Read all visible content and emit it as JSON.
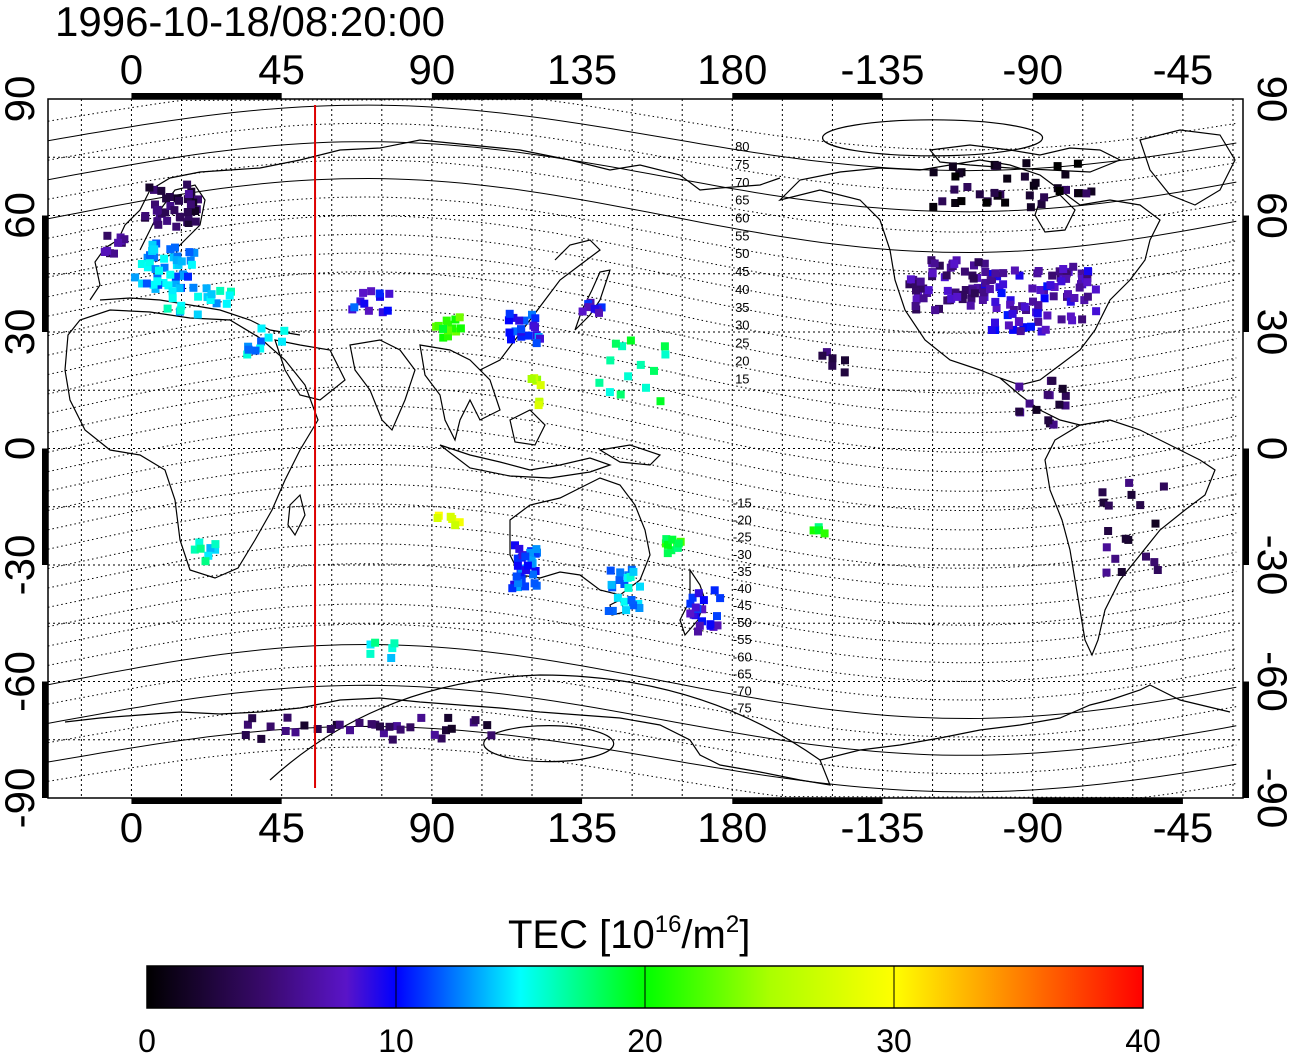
{
  "title": "1996-10-18/08:20:00",
  "colorbar": {
    "label_main": "TEC  [10",
    "label_exp1": "16",
    "label_mid": "/m",
    "label_exp2": "2",
    "label_end": "]",
    "ticks": [
      "0",
      "10",
      "20",
      "30",
      "40"
    ],
    "range": [
      0,
      40
    ],
    "colors": [
      "#000000",
      "#3a0a6e",
      "#5a14c8",
      "#0000ff",
      "#00ffff",
      "#00ff00",
      "#ffff00",
      "#ff8000",
      "#ff0000"
    ]
  },
  "chart_data": {
    "type": "heatmap",
    "title": "1996-10-18/08:20:00",
    "x_ticks_top": [
      "0",
      "45",
      "90",
      "135",
      "180",
      "-135",
      "-90",
      "-45"
    ],
    "x_ticks_bottom": [
      "0",
      "45",
      "90",
      "135",
      "180",
      "-135",
      "-90",
      "-45"
    ],
    "y_ticks_left": [
      "90",
      "60",
      "30",
      "0",
      "-30",
      "-60",
      "-90"
    ],
    "y_ticks_right": [
      "90",
      "60",
      "30",
      "0",
      "-30",
      "-60",
      "-90"
    ],
    "x_tick_lons": [
      0,
      45,
      90,
      135,
      180,
      225,
      270,
      315
    ],
    "y_tick_lats": [
      90,
      60,
      30,
      0,
      -30,
      -60,
      -90
    ],
    "lon_range": [
      -25,
      333
    ],
    "lat_range": [
      -90,
      90
    ],
    "terminator_lon": 55,
    "contour_labels_north": [
      "80",
      "75",
      "70",
      "65",
      "60",
      "55",
      "50",
      "45",
      "40",
      "35",
      "30",
      "25",
      "20",
      "15"
    ],
    "contour_labels_north_lat": [
      80,
      75,
      70,
      65,
      60,
      55,
      50,
      45,
      40,
      35,
      30,
      25,
      20,
      15
    ],
    "contour_labels_south": [
      "-15",
      "-20",
      "-25",
      "-30",
      "-35",
      "-40",
      "-45",
      "-50",
      "-55",
      "-60",
      "-65",
      "-70",
      "-75"
    ],
    "contour_labels_south_lat": [
      -15,
      -20,
      -25,
      -30,
      -35,
      -40,
      -45,
      -50,
      -55,
      -60,
      -65,
      -70,
      -75
    ],
    "tec_clusters": [
      {
        "name": "europe-north",
        "lon": 12,
        "lat": 62,
        "value": 4,
        "count": 40,
        "spread": [
          8,
          6
        ]
      },
      {
        "name": "europe-central",
        "lon": 10,
        "lat": 47,
        "value": 13,
        "count": 45,
        "spread": [
          9,
          6
        ]
      },
      {
        "name": "europe-south",
        "lon": 20,
        "lat": 38,
        "value": 15,
        "count": 18,
        "spread": [
          10,
          4
        ]
      },
      {
        "name": "uk",
        "lon": -5,
        "lat": 53,
        "value": 5,
        "count": 10,
        "spread": [
          3,
          3
        ]
      },
      {
        "name": "middle-east",
        "lon": 40,
        "lat": 28,
        "value": 14,
        "count": 10,
        "spread": [
          6,
          4
        ]
      },
      {
        "name": "central-asia",
        "lon": 72,
        "lat": 38,
        "value": 10,
        "count": 12,
        "spread": [
          6,
          3
        ]
      },
      {
        "name": "china",
        "lon": 95,
        "lat": 31,
        "value": 21,
        "count": 14,
        "spread": [
          4,
          3
        ]
      },
      {
        "name": "east-asia",
        "lon": 118,
        "lat": 31,
        "value": 11,
        "count": 20,
        "spread": [
          5,
          4
        ]
      },
      {
        "name": "japan",
        "lon": 138,
        "lat": 36,
        "value": 9,
        "count": 8,
        "spread": [
          3,
          2
        ]
      },
      {
        "name": "philippines",
        "lon": 121,
        "lat": 15,
        "value": 26,
        "count": 8,
        "spread": [
          2,
          4
        ]
      },
      {
        "name": "pacific-west",
        "lon": 150,
        "lat": 20,
        "value": 17,
        "count": 14,
        "spread": [
          10,
          8
        ]
      },
      {
        "name": "africa-east",
        "lon": 22,
        "lat": -27,
        "value": 15,
        "count": 8,
        "spread": [
          4,
          3
        ]
      },
      {
        "name": "indian-ocean",
        "lon": 95,
        "lat": -18,
        "value": 28,
        "count": 6,
        "spread": [
          4,
          2
        ]
      },
      {
        "name": "australia-west",
        "lon": 118,
        "lat": -30,
        "value": 11,
        "count": 30,
        "spread": [
          4,
          6
        ]
      },
      {
        "name": "australia-east",
        "lon": 148,
        "lat": -36,
        "value": 14,
        "count": 22,
        "spread": [
          5,
          6
        ]
      },
      {
        "name": "new-zealand",
        "lon": 172,
        "lat": -42,
        "value": 9,
        "count": 20,
        "spread": [
          5,
          6
        ]
      },
      {
        "name": "south-pacific",
        "lon": 163,
        "lat": -25,
        "value": 20,
        "count": 10,
        "spread": [
          3,
          3
        ]
      },
      {
        "name": "indian-ocean-south",
        "lon": 75,
        "lat": -52,
        "value": 16,
        "count": 6,
        "spread": [
          4,
          2
        ]
      },
      {
        "name": "antarctica",
        "lon": 70,
        "lat": -72,
        "value": 4,
        "count": 34,
        "spread": [
          40,
          3
        ]
      },
      {
        "name": "north-america-west",
        "lon": -115,
        "lat": 42,
        "value": 6,
        "count": 60,
        "spread": [
          12,
          7
        ]
      },
      {
        "name": "north-america-central",
        "lon": -95,
        "lat": 38,
        "value": 8,
        "count": 55,
        "spread": [
          10,
          8
        ]
      },
      {
        "name": "north-america-east",
        "lon": -78,
        "lat": 40,
        "value": 7,
        "count": 35,
        "spread": [
          7,
          7
        ]
      },
      {
        "name": "canada-arctic",
        "lon": -95,
        "lat": 68,
        "value": 2,
        "count": 40,
        "spread": [
          25,
          6
        ]
      },
      {
        "name": "central-america",
        "lon": -88,
        "lat": 12,
        "value": 4,
        "count": 16,
        "spread": [
          8,
          6
        ]
      },
      {
        "name": "south-america",
        "lon": -60,
        "lat": -20,
        "value": 4,
        "count": 18,
        "spread": [
          10,
          12
        ]
      },
      {
        "name": "hawaii-pacific",
        "lon": -155,
        "lat": -22,
        "value": 19,
        "count": 4,
        "spread": [
          3,
          2
        ]
      },
      {
        "name": "pacific-northeast",
        "lon": -150,
        "lat": 22,
        "value": 4,
        "count": 6,
        "spread": [
          4,
          3
        ]
      }
    ]
  }
}
